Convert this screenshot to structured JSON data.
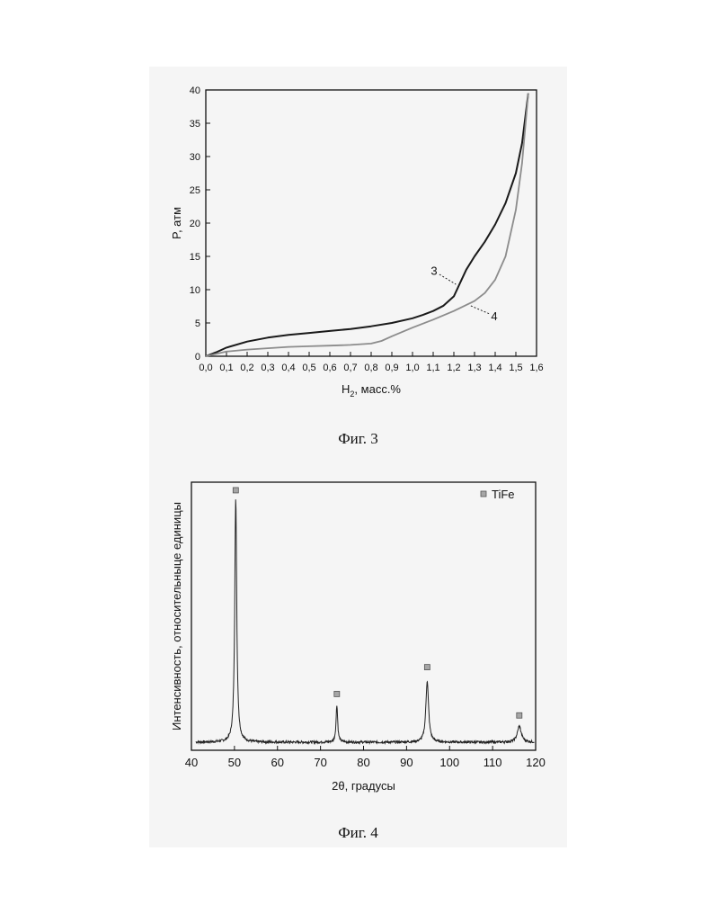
{
  "figures": [
    {
      "caption": "Фиг. 3"
    },
    {
      "caption": "Фиг. 4"
    }
  ],
  "chart_data": [
    {
      "type": "line",
      "title": "",
      "xlabel": "H",
      "xlabel_sub": "2",
      "xlabel_rest": ", масс.%",
      "ylabel": "P, атм",
      "xlim": [
        0.0,
        1.6
      ],
      "ylim": [
        0,
        40
      ],
      "xticks": [
        "0,0",
        "0,1",
        "0,2",
        "0,3",
        "0,4",
        "0,5",
        "0,6",
        "0,7",
        "0,8",
        "0,9",
        "1,0",
        "1,1",
        "1,2",
        "1,3",
        "1,4",
        "1,5",
        "1,6"
      ],
      "yticks": [
        "0",
        "5",
        "10",
        "15",
        "20",
        "25",
        "30",
        "35",
        "40"
      ],
      "grid": false,
      "series": [
        {
          "name": "3",
          "color": "#1a1a1a",
          "x": [
            0.0,
            0.05,
            0.1,
            0.2,
            0.3,
            0.4,
            0.5,
            0.6,
            0.7,
            0.8,
            0.9,
            1.0,
            1.05,
            1.1,
            1.15,
            1.2,
            1.23,
            1.26,
            1.3,
            1.35,
            1.4,
            1.45,
            1.5,
            1.53,
            1.56
          ],
          "y": [
            0.0,
            0.6,
            1.3,
            2.2,
            2.8,
            3.2,
            3.5,
            3.8,
            4.1,
            4.5,
            5.0,
            5.7,
            6.2,
            6.8,
            7.6,
            9.0,
            11.0,
            13.0,
            15.0,
            17.2,
            19.8,
            23.0,
            27.5,
            32.0,
            39.5
          ]
        },
        {
          "name": "4",
          "color": "#8c8c8c",
          "x": [
            0.0,
            0.1,
            0.2,
            0.3,
            0.4,
            0.5,
            0.6,
            0.7,
            0.8,
            0.85,
            0.9,
            1.0,
            1.1,
            1.2,
            1.3,
            1.35,
            1.4,
            1.45,
            1.5,
            1.53,
            1.56
          ],
          "y": [
            0.0,
            0.7,
            1.0,
            1.2,
            1.4,
            1.5,
            1.6,
            1.7,
            1.9,
            2.3,
            3.0,
            4.3,
            5.5,
            6.8,
            8.3,
            9.5,
            11.5,
            15.0,
            22.0,
            29.0,
            39.5
          ]
        }
      ],
      "annotations": [
        {
          "text": "3",
          "series": 0,
          "x": 1.21,
          "y": 10.8
        },
        {
          "text": "4",
          "series": 1,
          "x": 1.28,
          "y": 7.6
        }
      ]
    },
    {
      "type": "line",
      "title": "",
      "xlabel": "2θ, градусы",
      "ylabel": "Интенсивность, относительныце единицы",
      "xlim": [
        40,
        120
      ],
      "ylim": [
        0,
        100
      ],
      "xticks": [
        "40",
        "50",
        "60",
        "70",
        "80",
        "90",
        "100",
        "110",
        "120"
      ],
      "yticks": [],
      "grid": false,
      "legend": {
        "label": "TiFe",
        "position": "top-right",
        "marker": "square",
        "color": "#a6a6a6"
      },
      "series": [
        {
          "name": "TiFe",
          "color": "#222222",
          "baseline": 3,
          "peaks": [
            {
              "center": 50.3,
              "height": 91,
              "width": 0.55
            },
            {
              "center": 73.8,
              "height": 14,
              "width": 0.45
            },
            {
              "center": 94.8,
              "height": 23,
              "width": 0.75
            },
            {
              "center": 116.2,
              "height": 6,
              "width": 1.1
            }
          ]
        }
      ],
      "markers": [
        {
          "x": 50.3,
          "y": 97
        },
        {
          "x": 73.8,
          "y": 21
        },
        {
          "x": 94.8,
          "y": 31
        },
        {
          "x": 116.2,
          "y": 13
        }
      ]
    }
  ]
}
